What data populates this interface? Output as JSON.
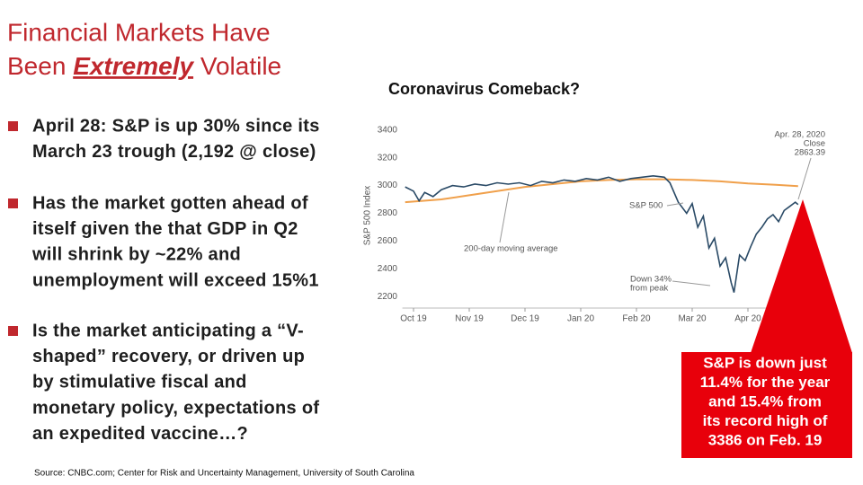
{
  "header": {
    "line1": "Financial Markets Have",
    "line2_start": "Been",
    "line2_emphasis": "Extremely",
    "line2_end": "Volatile"
  },
  "bullets": [
    {
      "lines": [
        "April 28: S&P is up 30%  since its",
        "March 23 trough (2,192 @ close)"
      ]
    },
    {
      "lines": [
        "Has the market gotten ahead of",
        "itself given the that GDP in Q2",
        "will shrink by ~22% and",
        "unemployment will exceed 15%1"
      ]
    },
    {
      "lines": [
        "Is the market anticipating a “V-",
        "shaped” recovery, or driven up",
        "by stimulative fiscal and",
        "monetary policy, expectations of",
        "an expedited vaccine…?"
      ]
    }
  ],
  "callout": {
    "lines": [
      "S&P is down just",
      "11.4% for the year",
      "and 15.4% from",
      "its record high of",
      "3386 on Feb. 19"
    ]
  },
  "source": "Source:  CNBC.com; Center for Risk and Uncertainty Management, University of South Carolina",
  "chart_data": {
    "type": "line",
    "title": "Coronavirus Comeback?",
    "y_label": "S&P 500 Index",
    "xlim": [
      -0.2,
      7.0
    ],
    "xticks": [
      {
        "value": 0,
        "label": "Oct 19"
      },
      {
        "value": 1,
        "label": "Nov 19"
      },
      {
        "value": 2,
        "label": "Dec 19"
      },
      {
        "value": 3,
        "label": "Jan 20"
      },
      {
        "value": 4,
        "label": "Feb 20"
      },
      {
        "value": 5,
        "label": "Mar 20"
      },
      {
        "value": 6,
        "label": "Apr 20"
      }
    ],
    "ylim": [
      2150,
      3450
    ],
    "yticks": [
      2200,
      2400,
      2600,
      2800,
      3000,
      3200,
      3400
    ],
    "grid": false,
    "series": [
      {
        "name": "S&P 500",
        "color": "#2a4a66",
        "x": [
          -0.15,
          0,
          0.1,
          0.2,
          0.35,
          0.5,
          0.7,
          0.9,
          1.1,
          1.3,
          1.5,
          1.7,
          1.9,
          2.1,
          2.3,
          2.5,
          2.7,
          2.9,
          3.1,
          3.3,
          3.5,
          3.7,
          3.9,
          4.1,
          4.3,
          4.5,
          4.6,
          4.75,
          4.9,
          5.0,
          5.1,
          5.2,
          5.3,
          5.4,
          5.5,
          5.6,
          5.7,
          5.75,
          5.85,
          5.95,
          6.05,
          6.15,
          6.25,
          6.35,
          6.45,
          6.55,
          6.65,
          6.75,
          6.85,
          6.9
        ],
        "values": [
          2990,
          2960,
          2890,
          2950,
          2920,
          2970,
          3000,
          2990,
          3010,
          3000,
          3020,
          3010,
          3020,
          3000,
          3030,
          3020,
          3040,
          3030,
          3050,
          3040,
          3060,
          3030,
          3050,
          3060,
          3070,
          3060,
          3020,
          2880,
          2800,
          2870,
          2700,
          2780,
          2550,
          2620,
          2420,
          2480,
          2300,
          2230,
          2500,
          2460,
          2560,
          2650,
          2700,
          2760,
          2790,
          2740,
          2820,
          2850,
          2880,
          2863.39
        ]
      },
      {
        "name": "200-day moving average",
        "color": "#f0a04b",
        "x": [
          -0.15,
          0.5,
          1,
          1.5,
          2,
          2.5,
          3,
          3.5,
          4,
          4.5,
          5,
          5.5,
          6,
          6.5,
          6.9
        ],
        "values": [
          2880,
          2900,
          2930,
          2960,
          2990,
          3010,
          3030,
          3040,
          3045,
          3045,
          3040,
          3030,
          3015,
          3005,
          2995
        ]
      }
    ],
    "annotations": [
      {
        "lines": [
          "Apr. 28, 2020",
          "Close",
          "2863.39"
        ]
      },
      {
        "lines": [
          "Down 34%",
          "from peak"
        ]
      }
    ]
  }
}
